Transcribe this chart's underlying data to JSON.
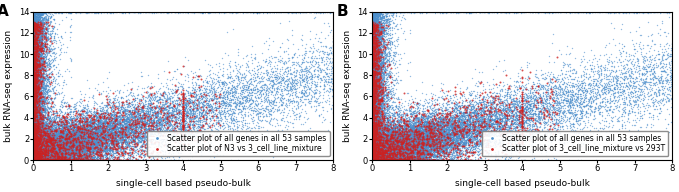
{
  "panel_A": {
    "label": "A",
    "xlabel": "single-cell based pseudo-bulk",
    "ylabel": "bulk RNA-seq expression",
    "xlim": [
      0,
      8
    ],
    "ylim": [
      0,
      14
    ],
    "xticks": [
      0,
      1,
      2,
      3,
      4,
      5,
      6,
      7,
      8
    ],
    "yticks": [
      0,
      2,
      4,
      6,
      8,
      10,
      12,
      14
    ],
    "legend": [
      "Scatter plot of all genes in all 53 samples",
      "Scatter plot of N3 vs 3_cell_line_mixture"
    ],
    "blue_color": "#4d8fcc",
    "red_color": "#cc2222",
    "n_blue": 30000,
    "n_red": 3000
  },
  "panel_B": {
    "label": "B",
    "xlabel": "single-cell based pseudo-bulk",
    "ylabel": "bulk RNA-seq expression",
    "xlim": [
      0,
      8
    ],
    "ylim": [
      0,
      14
    ],
    "xticks": [
      0,
      1,
      2,
      3,
      4,
      5,
      6,
      7,
      8
    ],
    "yticks": [
      0,
      2,
      4,
      6,
      8,
      10,
      12,
      14
    ],
    "legend": [
      "Scatter plot of all genes in all 53 samples",
      "Scatter plot of 3_cell_line_mixture vs 293T"
    ],
    "blue_color": "#4d8fcc",
    "red_color": "#cc2222",
    "n_blue": 30000,
    "n_red": 3000
  },
  "figsize": [
    6.79,
    1.92
  ],
  "dpi": 100,
  "marker_size_blue": 1,
  "marker_size_red": 2,
  "legend_fontsize": 5.5,
  "axis_label_fontsize": 6.5,
  "tick_fontsize": 6,
  "panel_label_fontsize": 11
}
